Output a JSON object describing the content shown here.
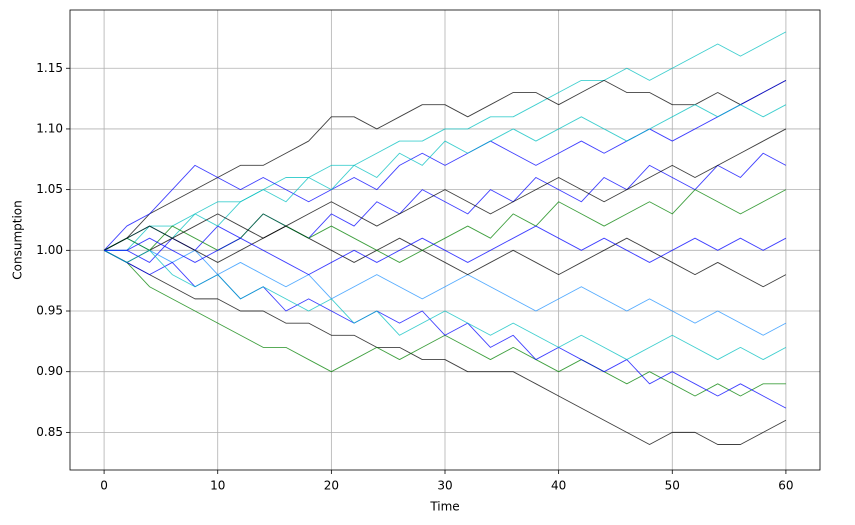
{
  "chart_data": {
    "type": "line",
    "x_label": "Time",
    "y_label": "Consumption",
    "x": [
      0,
      2,
      4,
      6,
      8,
      10,
      12,
      14,
      16,
      18,
      20,
      22,
      24,
      26,
      28,
      30,
      32,
      34,
      36,
      38,
      40,
      42,
      44,
      46,
      48,
      50,
      52,
      54,
      56,
      58,
      60
    ],
    "xlim": [
      -3,
      63
    ],
    "xticks": [
      0,
      10,
      20,
      30,
      40,
      50,
      60
    ],
    "ylim": [
      0.819,
      1.198
    ],
    "yticks": [
      0.85,
      {
        "value": 0.9,
        "label": "0.90"
      },
      0.95,
      {
        "value": 1,
        "label": "1.00"
      },
      1.05,
      {
        "value": 1.1,
        "label": "1.10"
      },
      1.15
    ],
    "grid": true,
    "series": [
      {
        "color": "#00bfbf",
        "values": [
          1,
          1.01,
          1.02,
          1.02,
          1.03,
          1.04,
          1.04,
          1.05,
          1.06,
          1.06,
          1.07,
          1.07,
          1.08,
          1.09,
          1.09,
          1.1,
          1.1,
          1.11,
          1.11,
          1.12,
          1.13,
          1.14,
          1.14,
          1.15,
          1.14,
          1.15,
          1.16,
          1.17,
          1.16,
          1.17,
          1.18
        ]
      },
      {
        "color": "#000000",
        "values": [
          1,
          0.99,
          0.98,
          0.97,
          0.96,
          0.96,
          0.95,
          0.95,
          0.94,
          0.94,
          0.93,
          0.93,
          0.92,
          0.92,
          0.91,
          0.91,
          0.9,
          0.9,
          0.9,
          0.89,
          0.88,
          0.87,
          0.86,
          0.85,
          0.84,
          0.85,
          0.85,
          0.84,
          0.84,
          0.85,
          0.86
        ]
      },
      {
        "color": "#000000",
        "values": [
          1,
          1.01,
          1.03,
          1.04,
          1.05,
          1.06,
          1.07,
          1.07,
          1.08,
          1.09,
          1.11,
          1.11,
          1.1,
          1.11,
          1.12,
          1.12,
          1.11,
          1.12,
          1.13,
          1.13,
          1.12,
          1.13,
          1.14,
          1.13,
          1.13,
          1.12,
          1.12,
          1.13,
          1.12,
          1.13,
          1.14
        ]
      },
      {
        "color": "#0000ff",
        "values": [
          1,
          1.02,
          1.03,
          1.05,
          1.07,
          1.06,
          1.05,
          1.06,
          1.05,
          1.04,
          1.05,
          1.06,
          1.05,
          1.07,
          1.08,
          1.07,
          1.08,
          1.09,
          1.08,
          1.07,
          1.08,
          1.09,
          1.08,
          1.09,
          1.1,
          1.09,
          1.1,
          1.11,
          1.12,
          1.13,
          1.14
        ]
      },
      {
        "color": "#008000",
        "values": [
          1,
          0.99,
          0.97,
          0.96,
          0.95,
          0.94,
          0.93,
          0.92,
          0.92,
          0.91,
          0.9,
          0.91,
          0.92,
          0.91,
          0.92,
          0.93,
          0.92,
          0.91,
          0.92,
          0.91,
          0.9,
          0.91,
          0.9,
          0.89,
          0.9,
          0.89,
          0.88,
          0.89,
          0.88,
          0.89,
          0.89
        ]
      },
      {
        "color": "#0000ff",
        "values": [
          1,
          1.0,
          0.99,
          1.01,
          1.0,
          1.02,
          1.01,
          1.03,
          1.02,
          1.01,
          1.03,
          1.02,
          1.04,
          1.03,
          1.05,
          1.04,
          1.03,
          1.05,
          1.04,
          1.06,
          1.05,
          1.04,
          1.06,
          1.05,
          1.07,
          1.06,
          1.05,
          1.07,
          1.06,
          1.08,
          1.07
        ]
      },
      {
        "color": "#1e90ff",
        "values": [
          1,
          1.01,
          1.0,
          0.99,
          1.0,
          0.98,
          0.99,
          0.98,
          0.97,
          0.98,
          0.96,
          0.97,
          0.98,
          0.97,
          0.96,
          0.97,
          0.98,
          0.97,
          0.96,
          0.95,
          0.96,
          0.97,
          0.96,
          0.95,
          0.96,
          0.95,
          0.94,
          0.95,
          0.94,
          0.93,
          0.94
        ]
      },
      {
        "color": "#000000",
        "values": [
          1,
          0.99,
          1.0,
          1.01,
          1.0,
          0.99,
          1.0,
          1.01,
          1.02,
          1.01,
          1.0,
          0.99,
          1.0,
          1.01,
          1.0,
          0.99,
          0.98,
          0.99,
          1.0,
          0.99,
          0.98,
          0.99,
          1.0,
          1.01,
          1.0,
          0.99,
          0.98,
          0.99,
          0.98,
          0.97,
          0.98
        ]
      },
      {
        "color": "#00bfbf",
        "values": [
          1,
          1.0,
          1.02,
          1.01,
          1.03,
          1.02,
          1.04,
          1.05,
          1.04,
          1.06,
          1.05,
          1.07,
          1.06,
          1.08,
          1.07,
          1.09,
          1.08,
          1.09,
          1.1,
          1.09,
          1.1,
          1.11,
          1.1,
          1.09,
          1.1,
          1.11,
          1.12,
          1.11,
          1.12,
          1.11,
          1.12
        ]
      },
      {
        "color": "#008000",
        "values": [
          1,
          1.01,
          1.0,
          1.02,
          1.01,
          1.0,
          1.01,
          1.03,
          1.02,
          1.01,
          1.02,
          1.01,
          1.0,
          0.99,
          1.0,
          1.01,
          1.02,
          1.01,
          1.03,
          1.02,
          1.04,
          1.03,
          1.02,
          1.03,
          1.04,
          1.03,
          1.05,
          1.04,
          1.03,
          1.04,
          1.05
        ]
      },
      {
        "color": "#0000ff",
        "values": [
          1,
          0.99,
          0.98,
          0.99,
          0.97,
          0.98,
          0.96,
          0.97,
          0.95,
          0.96,
          0.95,
          0.94,
          0.95,
          0.94,
          0.95,
          0.93,
          0.94,
          0.92,
          0.93,
          0.91,
          0.92,
          0.91,
          0.9,
          0.91,
          0.89,
          0.9,
          0.89,
          0.88,
          0.89,
          0.88,
          0.87
        ]
      },
      {
        "color": "#00bfbf",
        "values": [
          1,
          0.99,
          1.0,
          0.98,
          0.97,
          0.98,
          0.96,
          0.97,
          0.96,
          0.95,
          0.96,
          0.94,
          0.95,
          0.93,
          0.94,
          0.95,
          0.94,
          0.93,
          0.94,
          0.93,
          0.92,
          0.93,
          0.92,
          0.91,
          0.92,
          0.93,
          0.92,
          0.91,
          0.92,
          0.91,
          0.92
        ]
      },
      {
        "color": "#000000",
        "values": [
          1,
          1.01,
          1.02,
          1.01,
          1.02,
          1.03,
          1.02,
          1.01,
          1.02,
          1.03,
          1.04,
          1.03,
          1.02,
          1.03,
          1.04,
          1.05,
          1.04,
          1.03,
          1.04,
          1.05,
          1.06,
          1.05,
          1.04,
          1.05,
          1.06,
          1.07,
          1.06,
          1.07,
          1.08,
          1.09,
          1.1
        ]
      },
      {
        "color": "#0000ff",
        "values": [
          1,
          1.0,
          1.01,
          1.0,
          0.99,
          1.0,
          1.01,
          1.0,
          0.99,
          0.98,
          0.99,
          1.0,
          0.99,
          1.0,
          1.01,
          1.0,
          0.99,
          1.0,
          1.01,
          1.02,
          1.01,
          1.0,
          1.01,
          1.0,
          0.99,
          1.0,
          1.01,
          1.0,
          1.01,
          1.0,
          1.01
        ]
      }
    ]
  }
}
